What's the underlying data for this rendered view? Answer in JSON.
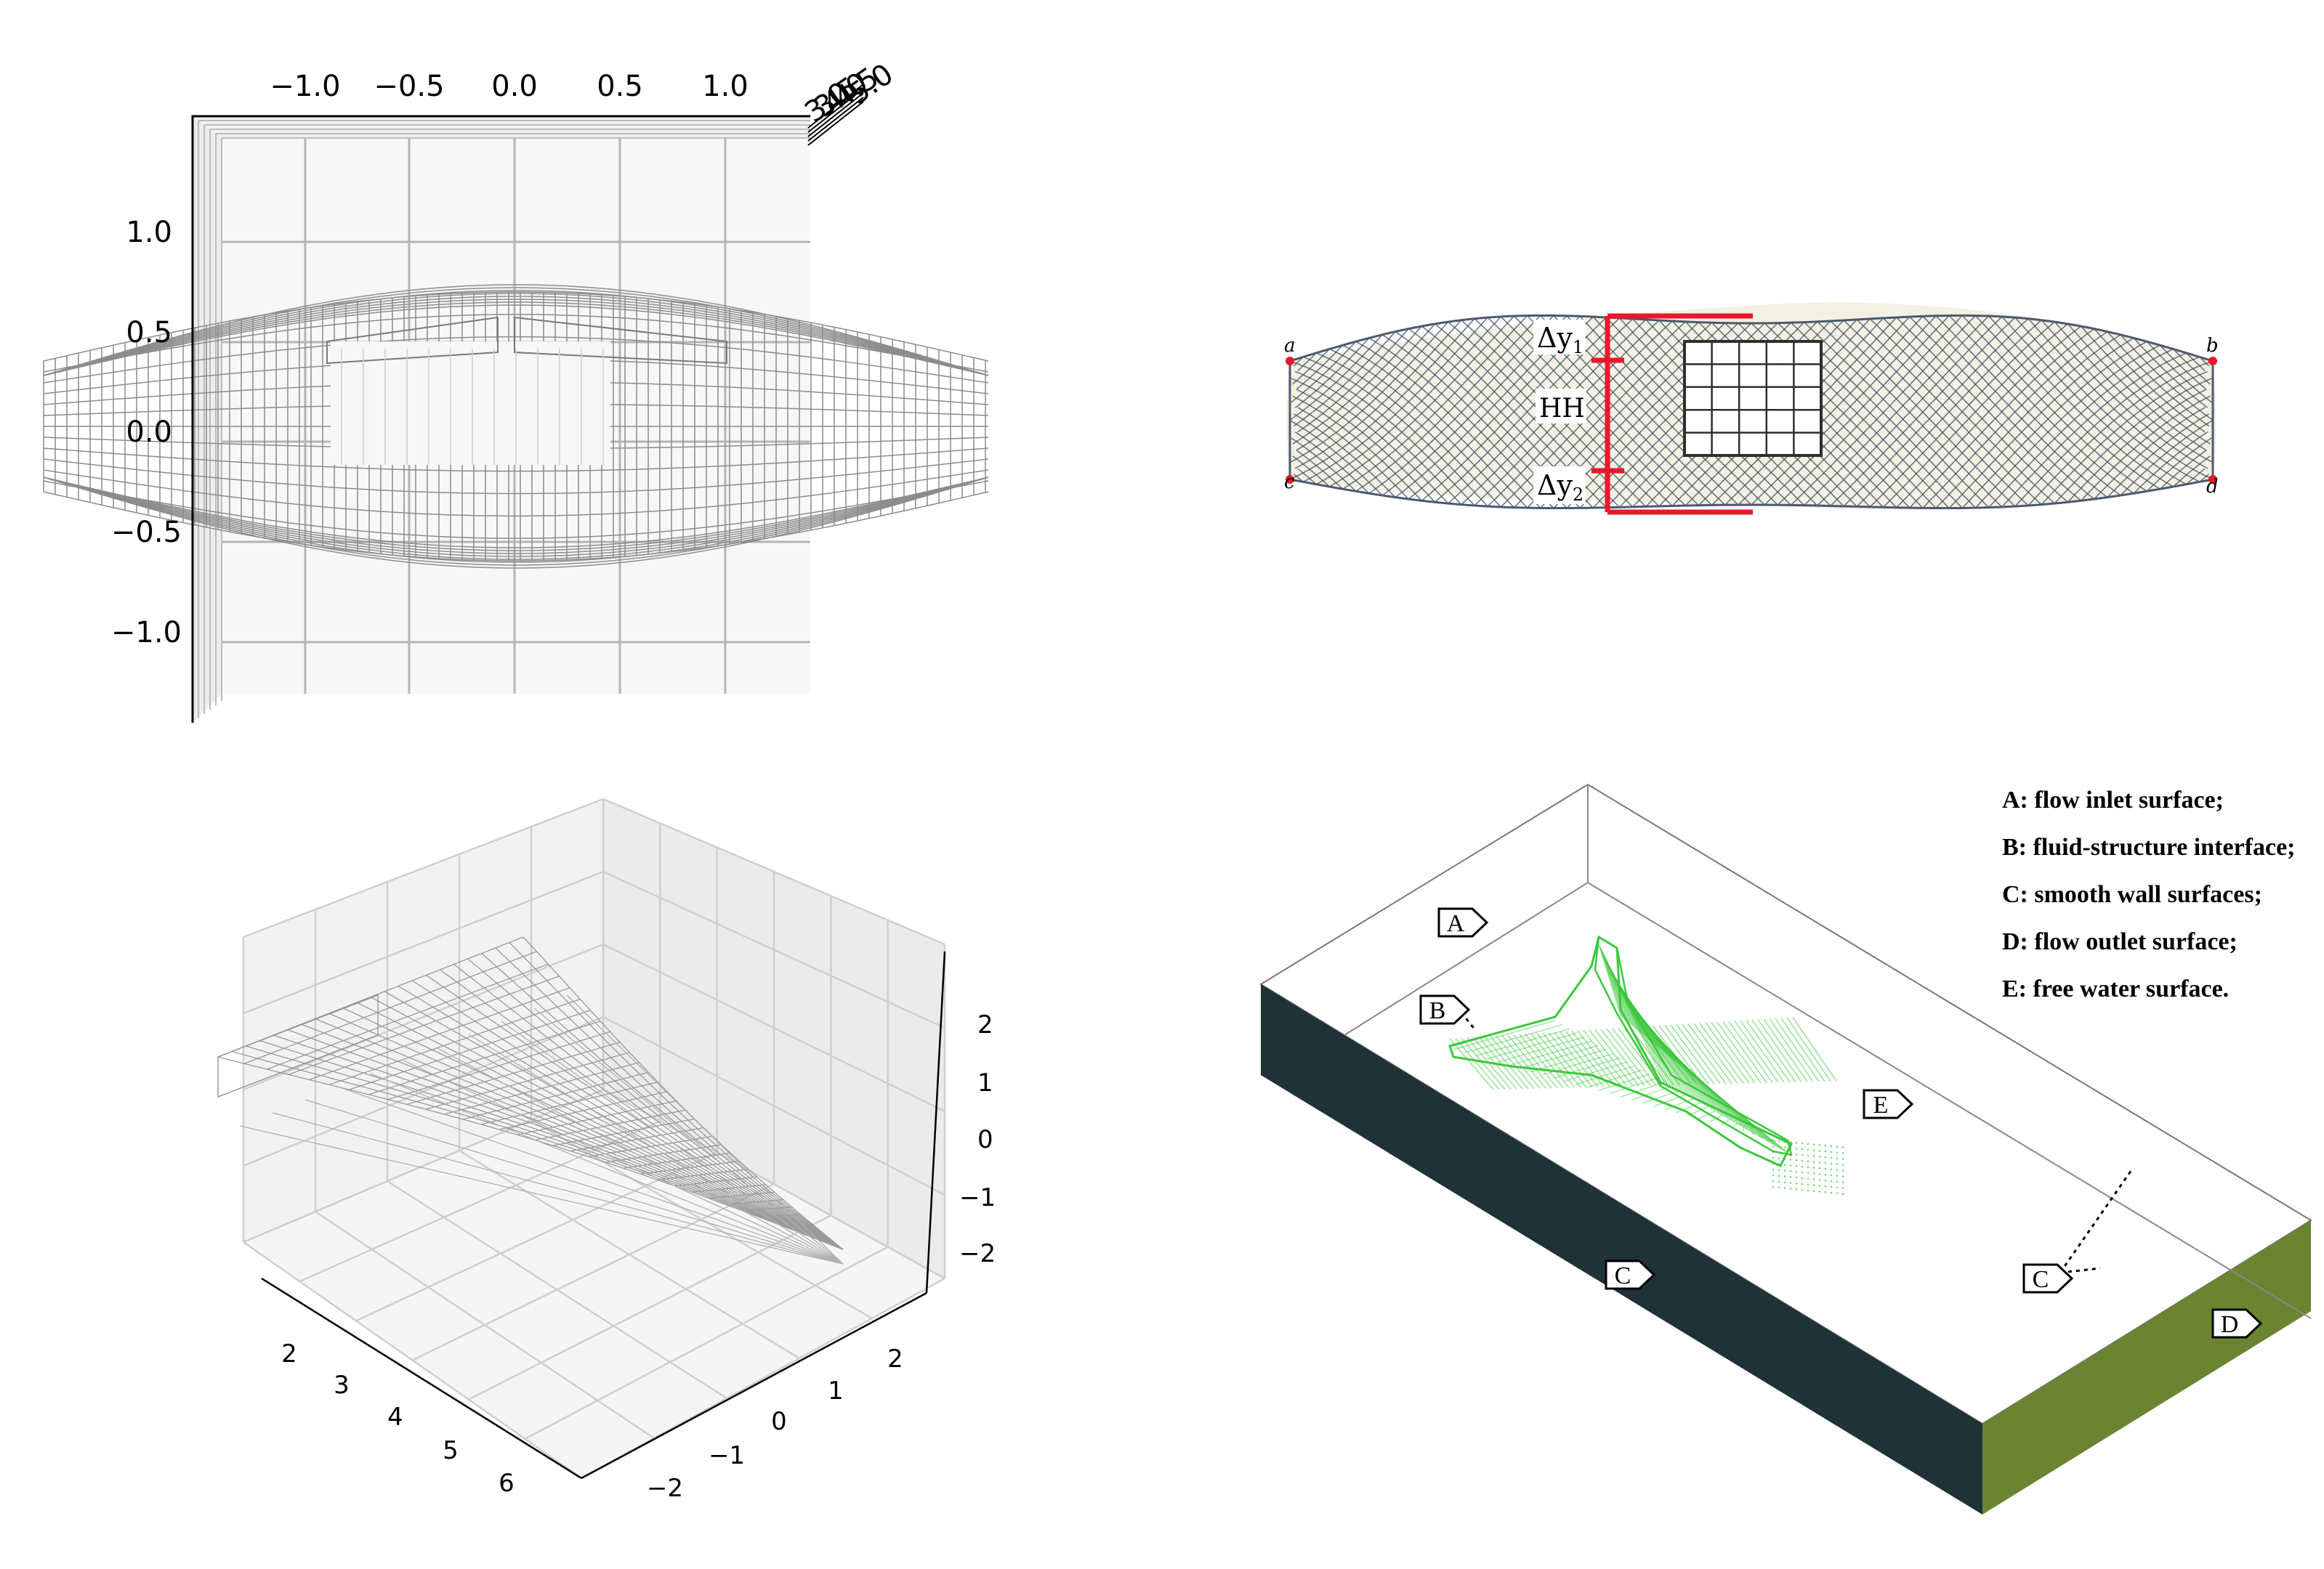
{
  "panel_tl": {
    "x_ticks": [
      "−1.0",
      "−0.5",
      "0.0",
      "0.5",
      "1.0"
    ],
    "y_ticks": [
      "1.0",
      "0.5",
      "0.0",
      "−0.5",
      "−1.0"
    ],
    "z_ticks": [
      "5.0",
      "4.5",
      "4.0",
      "3.5",
      "3.0"
    ]
  },
  "panel_tr": {
    "corner_labels": [
      "a",
      "b",
      "c",
      "d"
    ],
    "dim_dy1": "Δy",
    "dim_dy1_sub": "1",
    "dim_hh": "HH",
    "dim_dy2": "Δy",
    "dim_dy2_sub": "2",
    "net_color": "#4a5a6e",
    "mark_color": "#e8192c"
  },
  "panel_bl": {
    "x_ticks": [
      "2",
      "3",
      "4",
      "5",
      "6"
    ],
    "y_ticks": [
      "−2",
      "−1",
      "0",
      "1",
      "2"
    ],
    "z_ticks": [
      "2",
      "1",
      "0",
      "−1",
      "−2"
    ]
  },
  "panel_br": {
    "tags": [
      "A",
      "B",
      "E",
      "C",
      "C",
      "D"
    ],
    "legend": [
      "A: flow inlet surface;",
      "B: fluid-structure interface;",
      "C: smooth wall surfaces;",
      "D: flow outlet surface;",
      "E: free water surface."
    ],
    "side_color": "#1e3238",
    "outlet_color": "#6b8431",
    "net_color": "#3cc83c"
  }
}
